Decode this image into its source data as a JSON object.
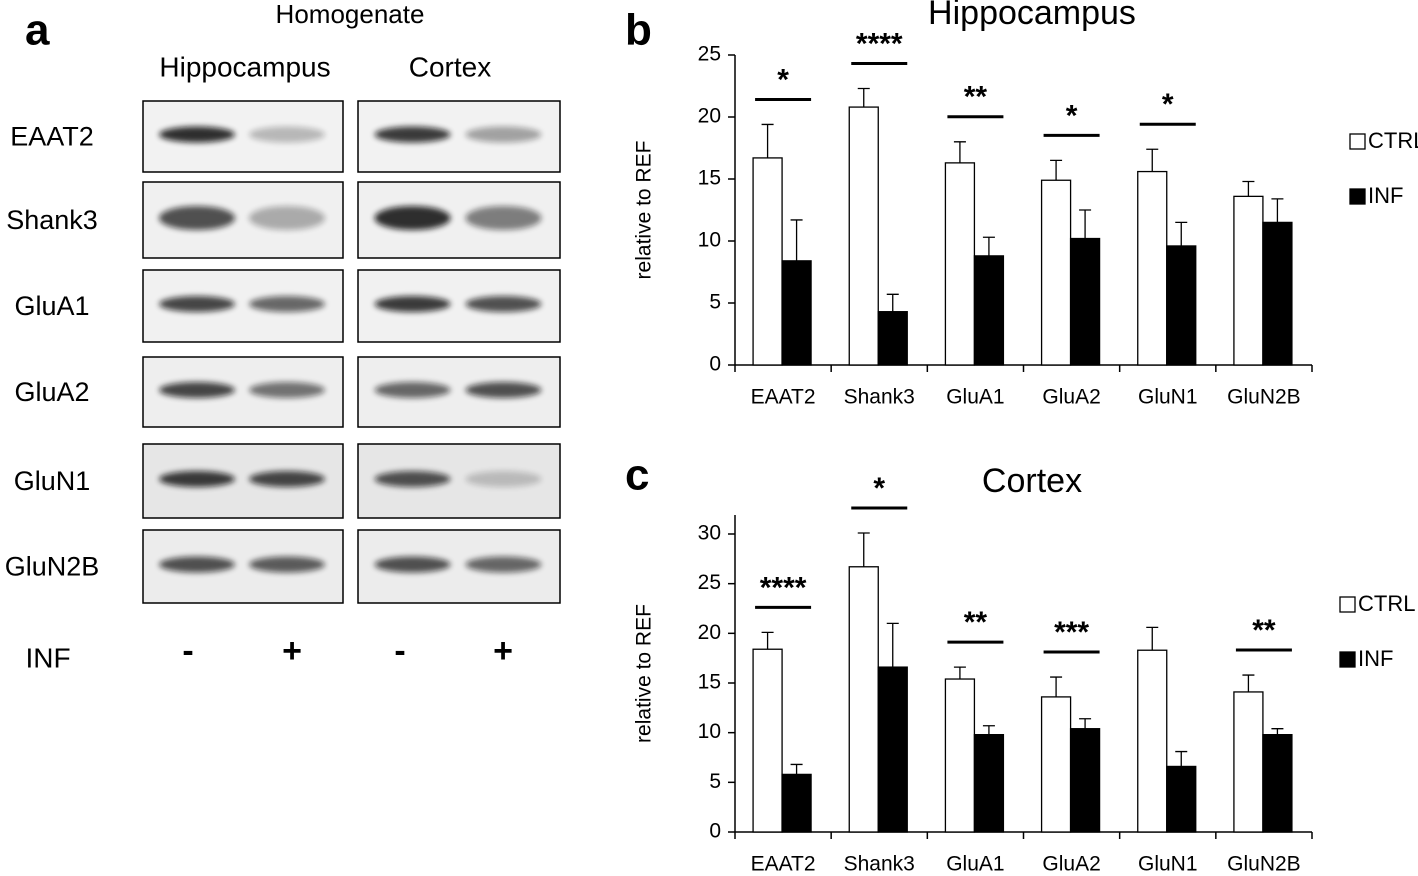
{
  "blot": {
    "panel_label": "a",
    "title": "Homogenate",
    "regions": [
      "Hippocampus",
      "Cortex"
    ],
    "rows": [
      "EAAT2",
      "Shank3",
      "GluA1",
      "GluA2",
      "GluN1",
      "GluN2B"
    ],
    "treatment_label": "INF",
    "treatment": [
      "-",
      "+",
      "-",
      "+"
    ]
  },
  "chart_data": [
    {
      "type": "bar",
      "panel_label": "b",
      "title": "Hippocampus",
      "y_label": "relative to REF",
      "categories": [
        "EAAT2",
        "Shank3",
        "GluA1",
        "GluA2",
        "GluN1",
        "GluN2B"
      ],
      "series": [
        {
          "name": "CTRL",
          "color": "#ffffff",
          "values": [
            16.7,
            20.8,
            16.3,
            14.9,
            15.6,
            13.6
          ],
          "errors": [
            2.7,
            1.5,
            1.7,
            1.6,
            1.8,
            1.2
          ]
        },
        {
          "name": "INF",
          "color": "#000000",
          "values": [
            8.4,
            4.3,
            8.8,
            10.2,
            9.6,
            11.5
          ],
          "errors": [
            3.3,
            1.4,
            1.5,
            2.3,
            1.9,
            1.9
          ]
        }
      ],
      "significance": [
        "*",
        "****",
        "**",
        "*",
        "*",
        null
      ],
      "ylim": [
        0,
        25
      ],
      "yticks": [
        0,
        5,
        10,
        15,
        20,
        25
      ],
      "grid": false,
      "legend": "right"
    },
    {
      "type": "bar",
      "panel_label": "c",
      "title": "Cortex",
      "y_label": "relative to REF",
      "categories": [
        "EAAT2",
        "Shank3",
        "GluA1",
        "GluA2",
        "GluN1",
        "GluN2B"
      ],
      "series": [
        {
          "name": "CTRL",
          "color": "#ffffff",
          "values": [
            18.4,
            26.7,
            15.4,
            13.6,
            18.3,
            14.1
          ],
          "errors": [
            1.7,
            3.4,
            1.2,
            2.0,
            2.3,
            1.7
          ]
        },
        {
          "name": "INF",
          "color": "#000000",
          "values": [
            5.8,
            16.6,
            9.8,
            10.4,
            6.6,
            9.8
          ],
          "errors": [
            1.0,
            4.4,
            0.9,
            1.0,
            1.5,
            0.6
          ]
        }
      ],
      "significance": [
        "****",
        "*",
        "**",
        "***",
        null,
        "**"
      ],
      "ylim": [
        0,
        30
      ],
      "yticks": [
        0,
        5,
        10,
        15,
        20,
        25,
        30
      ],
      "grid": false,
      "legend": "right"
    }
  ]
}
